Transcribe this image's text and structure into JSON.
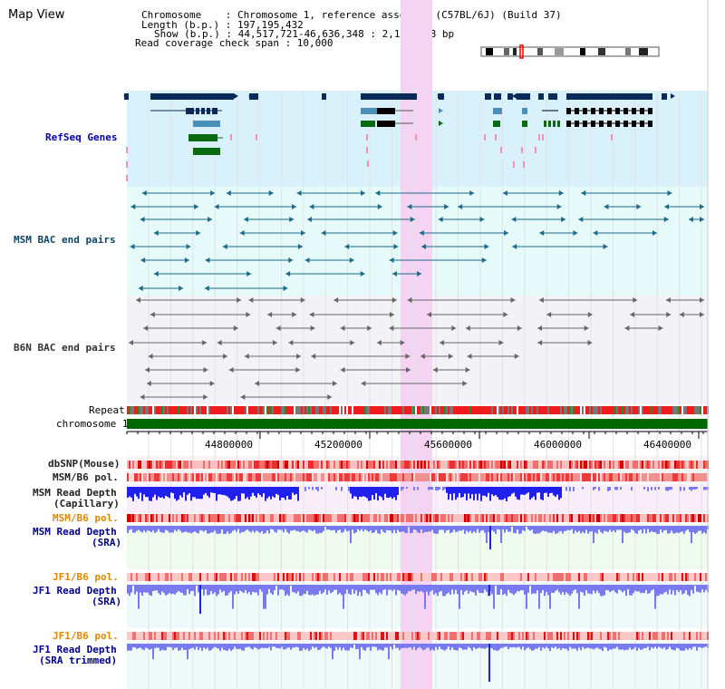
{
  "title": "Map View",
  "header": {
    "chromosome": "Chromosome    : Chromosome 1, reference assembly (C57BL/6J) (Build 37)",
    "length": "Length (b.p.) : 197,195,432",
    "show": "Show (b.p.) : 44,517,721-46,636,348 : 2,118,628 bp",
    "coverage": "Read coverage check span : 10,000"
  },
  "tracks": {
    "refseq": "RefSeq Genes",
    "msm_bac": "MSM BAC end pairs",
    "b6n_bac": "B6N BAC end pairs",
    "repeat": "Repeat",
    "chromosome": "chromosome 1",
    "dbsnp": "dbSNP(Mouse)",
    "msm_b6_pol_1": "MSM/B6 pol.",
    "msm_depth_cap_1": "MSM Read Depth",
    "msm_depth_cap_2": "(Capillary)",
    "msm_b6_pol_2": "MSM/B6 pol.",
    "msm_depth_sra_1": "MSM Read Depth",
    "msm_depth_sra_2": "(SRA)",
    "jf1_pol_1": "JF1/B6 pol.",
    "jf1_depth_sra_1": "JF1 Read Depth",
    "jf1_depth_sra_2": "(SRA)",
    "jf1_pol_2": "JF1/B6 pol.",
    "jf1_depth_trim_1": "JF1 Read Depth",
    "jf1_depth_trim_2": "(SRA trimmed)"
  },
  "axis": {
    "ticks": [
      "44800000",
      "45200000",
      "45600000",
      "46000000",
      "46400000"
    ]
  },
  "colors": {
    "refseq_bg": "#d9f1fb",
    "bac_bg": "#e6fafa",
    "gray_bg": "#f3f3f7",
    "highlight": "#f5d4f3",
    "gene_dark": "#0a2a5a",
    "gene_light": "#4a90b8",
    "gene_green": "#0a6a10",
    "msm_pair": "#1a6a8a",
    "b6n_pair": "#666666",
    "chromosome": "#006600",
    "depth_blue": "#2020ee",
    "depth_light": "#7a7af0",
    "pol_red": "#ee2020",
    "label_navy": "#000088",
    "label_teal": "#004466",
    "label_orange": "#dd8800"
  }
}
